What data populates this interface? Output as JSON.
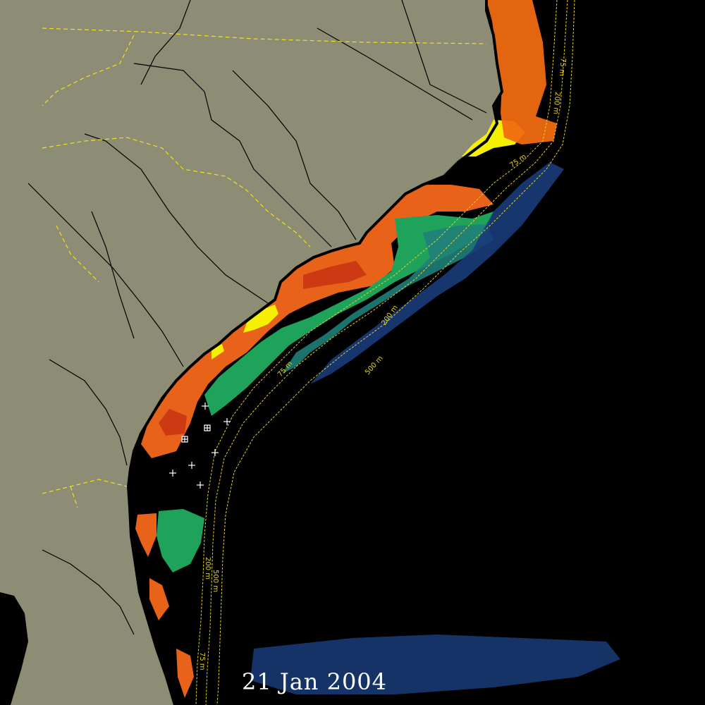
{
  "date_label": "21 Jan 2004",
  "contour_labels": {
    "c75": "75 m",
    "c200": "200 m",
    "c500": "500 m"
  },
  "colors": {
    "land": "#8d8c75",
    "ocean": "#000000",
    "coast": "#000000",
    "state_border": "#f2e21a",
    "rivers": "#000000",
    "contours": "#e6d21c",
    "sst_high": "#f4f000",
    "sst_warm": "#f06a10",
    "sst_mid": "#cf3a14",
    "sst_green": "#1fa35a",
    "sst_teal": "#1f7f7a",
    "sst_blue": "#1a3c7a",
    "marker": "#ffffff"
  },
  "markers": {
    "plus_count": 6,
    "boxed_count": 2
  }
}
